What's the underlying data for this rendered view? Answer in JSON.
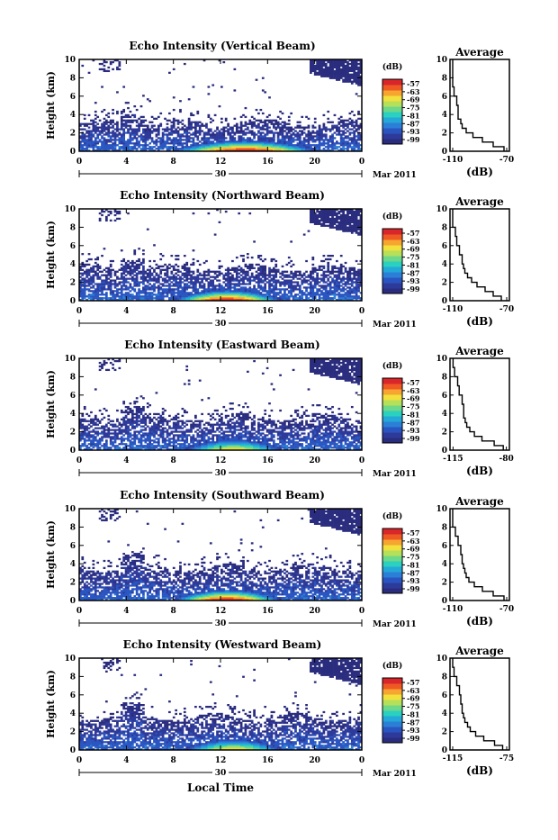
{
  "figure": {
    "xlabel": "Local Time",
    "date_label": "Mar 2011",
    "day_label": "30"
  },
  "colors": {
    "scale": [
      "#2a2c7e",
      "#2e3a9a",
      "#2a55c0",
      "#2b7fd6",
      "#23a8d8",
      "#2ad0c0",
      "#6ed88a",
      "#b6e05a",
      "#f2e03c",
      "#f7a531",
      "#ef5a24",
      "#d8262a"
    ],
    "background": "#ffffff"
  },
  "chart_data": [
    {
      "type": "heatmap",
      "title": "Echo Intensity (Vertical Beam)",
      "ylabel": "Height (km)",
      "xlim": [
        0,
        24
      ],
      "ylim": [
        0,
        10
      ],
      "x_ticks": [
        "0",
        "4",
        "8",
        "12",
        "16",
        "20",
        "0"
      ],
      "y_ticks": [
        "0",
        "2",
        "4",
        "6",
        "8",
        "10"
      ],
      "colorbar": {
        "unit": "(dB)",
        "ticks": [
          "-57",
          "-63",
          "-69",
          "-75",
          "-81",
          "-87",
          "-93",
          "-99"
        ]
      },
      "top_of_echo_km": 3.0,
      "enhanced_layer": {
        "start_h": 8,
        "end_h": 20,
        "peak_h": 12,
        "peak_dB": -57
      },
      "profile": {
        "title": "Average",
        "xlabel": "(dB)",
        "x_ticks": [
          "-110",
          "-70"
        ],
        "xlim": [
          -112,
          -68
        ],
        "height": [
          0,
          0.5,
          1,
          1.5,
          2,
          2.5,
          3,
          3.5,
          4,
          5,
          6,
          7,
          8,
          9,
          10
        ],
        "dB": [
          -72,
          -80,
          -88,
          -95,
          -100,
          -103,
          -104,
          -106,
          -106,
          -107,
          -109,
          -110,
          -110,
          -110,
          -110
        ]
      }
    },
    {
      "type": "heatmap",
      "title": "Echo Intensity (Northward Beam)",
      "ylabel": "Height (km)",
      "xlim": [
        0,
        24
      ],
      "ylim": [
        0,
        10
      ],
      "x_ticks": [
        "0",
        "4",
        "8",
        "12",
        "16",
        "20",
        "0"
      ],
      "y_ticks": [
        "0",
        "2",
        "4",
        "6",
        "8",
        "10"
      ],
      "colorbar": {
        "unit": "(dB)",
        "ticks": [
          "-57",
          "-63",
          "-69",
          "-75",
          "-81",
          "-87",
          "-93",
          "-99"
        ]
      },
      "top_of_echo_km": 3.5,
      "enhanced_layer": {
        "start_h": 8,
        "end_h": 17,
        "peak_h": 12,
        "peak_dB": -57
      },
      "profile": {
        "title": "Average",
        "xlabel": "(dB)",
        "x_ticks": [
          "-110",
          "-70"
        ],
        "xlim": [
          -112,
          -68
        ],
        "height": [
          0,
          0.5,
          1,
          1.5,
          2,
          2.5,
          3,
          3.5,
          4,
          5,
          6,
          7,
          8,
          9,
          10
        ],
        "dB": [
          -74,
          -80,
          -86,
          -92,
          -96,
          -99,
          -101,
          -102,
          -103,
          -105,
          -107,
          -108,
          -110,
          -110,
          -110
        ]
      }
    },
    {
      "type": "heatmap",
      "title": "Echo Intensity (Eastward Beam)",
      "ylabel": "Height (km)",
      "xlim": [
        0,
        24
      ],
      "ylim": [
        0,
        10
      ],
      "x_ticks": [
        "0",
        "4",
        "8",
        "12",
        "16",
        "20",
        "0"
      ],
      "y_ticks": [
        "0",
        "2",
        "4",
        "6",
        "8",
        "10"
      ],
      "colorbar": {
        "unit": "(dB)",
        "ticks": [
          "-57",
          "-63",
          "-69",
          "-75",
          "-81",
          "-87",
          "-93",
          "-99"
        ]
      },
      "top_of_echo_km": 3.5,
      "enhanced_layer": {
        "start_h": 9,
        "end_h": 17,
        "peak_h": 12,
        "peak_dB": -69
      },
      "profile": {
        "title": "Average",
        "xlabel": "(dB)",
        "x_ticks": [
          "-115",
          "-80"
        ],
        "xlim": [
          -117,
          -78
        ],
        "height": [
          0,
          0.5,
          1,
          1.5,
          2,
          2.5,
          3,
          3.5,
          4,
          5,
          6,
          7,
          8,
          9,
          10
        ],
        "dB": [
          -82,
          -88,
          -96,
          -101,
          -104,
          -106,
          -107,
          -108,
          -108,
          -109,
          -111,
          -112,
          -114,
          -115,
          -115
        ]
      }
    },
    {
      "type": "heatmap",
      "title": "Echo Intensity (Southward Beam)",
      "ylabel": "Height (km)",
      "xlim": [
        0,
        24
      ],
      "ylim": [
        0,
        10
      ],
      "x_ticks": [
        "0",
        "4",
        "8",
        "12",
        "16",
        "20",
        "0"
      ],
      "y_ticks": [
        "0",
        "2",
        "4",
        "6",
        "8",
        "10"
      ],
      "colorbar": {
        "unit": "(dB)",
        "ticks": [
          "-57",
          "-63",
          "-69",
          "-75",
          "-81",
          "-87",
          "-93",
          "-99"
        ]
      },
      "top_of_echo_km": 3.5,
      "enhanced_layer": {
        "start_h": 8,
        "end_h": 17,
        "peak_h": 12,
        "peak_dB": -57
      },
      "profile": {
        "title": "Average",
        "xlabel": "(dB)",
        "x_ticks": [
          "-110",
          "-70"
        ],
        "xlim": [
          -112,
          -68
        ],
        "height": [
          0,
          0.5,
          1,
          1.5,
          2,
          2.5,
          3,
          3.5,
          4,
          5,
          6,
          7,
          8,
          9,
          10
        ],
        "dB": [
          -72,
          -80,
          -88,
          -94,
          -98,
          -100,
          -101,
          -102,
          -103,
          -104,
          -106,
          -108,
          -110,
          -110,
          -110
        ]
      }
    },
    {
      "type": "heatmap",
      "title": "Echo Intensity (Westward Beam)",
      "ylabel": "Height (km)",
      "xlim": [
        0,
        24
      ],
      "ylim": [
        0,
        10
      ],
      "x_ticks": [
        "0",
        "4",
        "8",
        "12",
        "16",
        "20",
        "0"
      ],
      "y_ticks": [
        "0",
        "2",
        "4",
        "6",
        "8",
        "10"
      ],
      "colorbar": {
        "unit": "(dB)",
        "ticks": [
          "-57",
          "-63",
          "-69",
          "-75",
          "-81",
          "-87",
          "-93",
          "-99"
        ]
      },
      "top_of_echo_km": 3.5,
      "enhanced_layer": {
        "start_h": 9,
        "end_h": 17,
        "peak_h": 12,
        "peak_dB": -69
      },
      "profile": {
        "title": "Average",
        "xlabel": "(dB)",
        "x_ticks": [
          "-115",
          "-75"
        ],
        "xlim": [
          -117,
          -73
        ],
        "height": [
          0,
          0.5,
          1,
          1.5,
          2,
          2.5,
          3,
          3.5,
          4,
          5,
          6,
          7,
          8,
          9,
          10
        ],
        "dB": [
          -78,
          -84,
          -92,
          -98,
          -102,
          -104,
          -106,
          -107,
          -108,
          -109,
          -110,
          -112,
          -114,
          -115,
          -115
        ]
      }
    }
  ]
}
